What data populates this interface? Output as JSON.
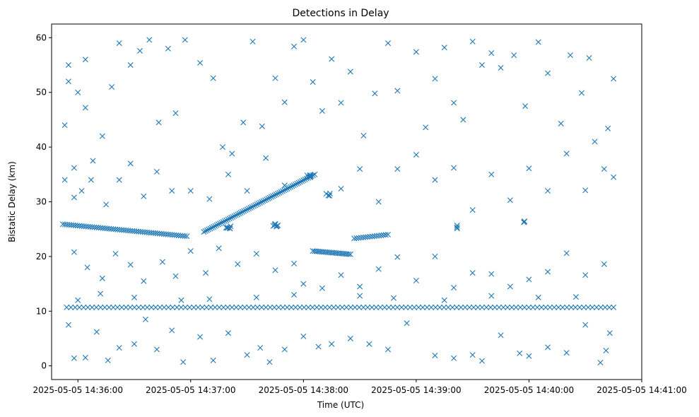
{
  "chart_data": {
    "type": "scatter",
    "title": "Detections in Delay",
    "xlabel": "Time (UTC)",
    "ylabel": "Bistatic Delay (km)",
    "x_ticks": [
      "2025-05-05 14:36:00",
      "2025-05-05 14:37:00",
      "2025-05-05 14:38:00",
      "2025-05-05 14:39:00",
      "2025-05-05 14:40:00",
      "2025-05-05 14:41:00"
    ],
    "y_ticks": [
      0,
      10,
      20,
      30,
      40,
      50,
      60
    ],
    "xlim": [
      "2025-05-05 14:35:46",
      "2025-05-05 14:41:00"
    ],
    "ylim": [
      -2.5,
      62.5
    ],
    "grid": false,
    "legend": "none",
    "marker": "x",
    "color": "#1f77b4",
    "tracks": [
      {
        "description": "descending track",
        "x_start": "2025-05-05 14:35:52",
        "y_start": 25.9,
        "x_end": "2025-05-05 14:36:58",
        "y_end": 23.7,
        "count": 60
      },
      {
        "description": "ascending track",
        "x_start": "2025-05-05 14:37:07",
        "y_start": 24.5,
        "x_end": "2025-05-05 14:38:06",
        "y_end": 35.0,
        "count": 70
      },
      {
        "description": "constant track",
        "x_start": "2025-05-05 14:35:54",
        "y_start": 10.7,
        "x_end": "2025-05-05 14:40:45",
        "y_end": 10.7,
        "count": 130
      },
      {
        "description": "mid track",
        "x_start": "2025-05-05 14:38:05",
        "y_start": 21.0,
        "x_end": "2025-05-05 14:38:25",
        "y_end": 20.4,
        "count": 22
      },
      {
        "description": "short track",
        "x_start": "2025-05-05 14:38:27",
        "y_start": 23.3,
        "x_end": "2025-05-05 14:38:45",
        "y_end": 24.0,
        "count": 16
      }
    ],
    "scattered_points": [
      [
        "2025-05-05 14:35:53",
        44.0
      ],
      [
        "2025-05-05 14:35:55",
        55.0
      ],
      [
        "2025-05-05 14:35:55",
        52.0
      ],
      [
        "2025-05-05 14:35:58",
        36.2
      ],
      [
        "2025-05-05 14:36:00",
        50.0
      ],
      [
        "2025-05-05 14:36:04",
        56.0
      ],
      [
        "2025-05-05 14:36:04",
        47.2
      ],
      [
        "2025-05-05 14:36:08",
        37.5
      ],
      [
        "2025-05-05 14:36:13",
        42.0
      ],
      [
        "2025-05-05 14:36:18",
        51.0
      ],
      [
        "2025-05-05 14:36:22",
        59.0
      ],
      [
        "2025-05-05 14:36:28",
        55.0
      ],
      [
        "2025-05-05 14:36:33",
        57.6
      ],
      [
        "2025-05-05 14:36:38",
        59.6
      ],
      [
        "2025-05-05 14:36:43",
        44.5
      ],
      [
        "2025-05-05 14:36:48",
        58.0
      ],
      [
        "2025-05-05 14:36:52",
        46.2
      ],
      [
        "2025-05-05 14:36:57",
        59.6
      ],
      [
        "2025-05-05 14:37:05",
        55.4
      ],
      [
        "2025-05-05 14:37:12",
        52.6
      ],
      [
        "2025-05-05 14:37:17",
        40.0
      ],
      [
        "2025-05-05 14:37:22",
        38.8
      ],
      [
        "2025-05-05 14:37:28",
        44.5
      ],
      [
        "2025-05-05 14:37:33",
        59.3
      ],
      [
        "2025-05-05 14:37:38",
        43.8
      ],
      [
        "2025-05-05 14:37:45",
        52.6
      ],
      [
        "2025-05-05 14:37:50",
        48.2
      ],
      [
        "2025-05-05 14:37:55",
        58.4
      ],
      [
        "2025-05-05 14:38:00",
        59.6
      ],
      [
        "2025-05-05 14:38:05",
        51.9
      ],
      [
        "2025-05-05 14:38:10",
        46.6
      ],
      [
        "2025-05-05 14:38:15",
        56.1
      ],
      [
        "2025-05-05 14:38:20",
        48.1
      ],
      [
        "2025-05-05 14:38:25",
        53.8
      ],
      [
        "2025-05-05 14:38:32",
        42.1
      ],
      [
        "2025-05-05 14:38:38",
        49.8
      ],
      [
        "2025-05-05 14:38:45",
        59.0
      ],
      [
        "2025-05-05 14:38:50",
        50.3
      ],
      [
        "2025-05-05 14:39:00",
        57.4
      ],
      [
        "2025-05-05 14:39:05",
        43.6
      ],
      [
        "2025-05-05 14:39:10",
        52.5
      ],
      [
        "2025-05-05 14:39:15",
        58.2
      ],
      [
        "2025-05-05 14:39:20",
        48.1
      ],
      [
        "2025-05-05 14:39:25",
        45.0
      ],
      [
        "2025-05-05 14:39:30",
        59.3
      ],
      [
        "2025-05-05 14:39:35",
        55.0
      ],
      [
        "2025-05-05 14:39:40",
        57.2
      ],
      [
        "2025-05-05 14:39:45",
        54.5
      ],
      [
        "2025-05-05 14:39:52",
        56.8
      ],
      [
        "2025-05-05 14:39:58",
        47.5
      ],
      [
        "2025-05-05 14:40:05",
        59.2
      ],
      [
        "2025-05-05 14:40:10",
        53.5
      ],
      [
        "2025-05-05 14:40:17",
        44.3
      ],
      [
        "2025-05-05 14:40:22",
        56.8
      ],
      [
        "2025-05-05 14:40:28",
        49.9
      ],
      [
        "2025-05-05 14:40:32",
        56.3
      ],
      [
        "2025-05-05 14:40:35",
        41.0
      ],
      [
        "2025-05-05 14:40:42",
        43.4
      ],
      [
        "2025-05-05 14:40:45",
        52.5
      ],
      [
        "2025-05-05 14:35:53",
        34.0
      ],
      [
        "2025-05-05 14:35:58",
        30.8
      ],
      [
        "2025-05-05 14:36:02",
        32.0
      ],
      [
        "2025-05-05 14:36:07",
        34.0
      ],
      [
        "2025-05-05 14:36:15",
        29.5
      ],
      [
        "2025-05-05 14:36:22",
        34.0
      ],
      [
        "2025-05-05 14:36:28",
        37.0
      ],
      [
        "2025-05-05 14:36:35",
        31.0
      ],
      [
        "2025-05-05 14:36:42",
        35.5
      ],
      [
        "2025-05-05 14:36:50",
        32.0
      ],
      [
        "2025-05-05 14:37:00",
        32.0
      ],
      [
        "2025-05-05 14:37:10",
        30.5
      ],
      [
        "2025-05-05 14:37:20",
        35.0
      ],
      [
        "2025-05-05 14:37:30",
        32.0
      ],
      [
        "2025-05-05 14:37:40",
        38.0
      ],
      [
        "2025-05-05 14:37:50",
        33.0
      ],
      [
        "2025-05-05 14:38:20",
        32.4
      ],
      [
        "2025-05-05 14:38:30",
        36.0
      ],
      [
        "2025-05-05 14:38:40",
        30.0
      ],
      [
        "2025-05-05 14:38:50",
        36.0
      ],
      [
        "2025-05-05 14:39:00",
        38.6
      ],
      [
        "2025-05-05 14:39:10",
        34.0
      ],
      [
        "2025-05-05 14:39:20",
        36.2
      ],
      [
        "2025-05-05 14:39:30",
        28.5
      ],
      [
        "2025-05-05 14:39:40",
        35.0
      ],
      [
        "2025-05-05 14:39:50",
        30.3
      ],
      [
        "2025-05-05 14:40:00",
        36.1
      ],
      [
        "2025-05-05 14:40:10",
        32.0
      ],
      [
        "2025-05-05 14:40:20",
        38.8
      ],
      [
        "2025-05-05 14:40:30",
        32.1
      ],
      [
        "2025-05-05 14:40:40",
        36.0
      ],
      [
        "2025-05-05 14:40:45",
        34.5
      ],
      [
        "2025-05-05 14:35:58",
        20.8
      ],
      [
        "2025-05-05 14:36:05",
        18.0
      ],
      [
        "2025-05-05 14:36:13",
        16.0
      ],
      [
        "2025-05-05 14:36:20",
        20.5
      ],
      [
        "2025-05-05 14:36:28",
        18.5
      ],
      [
        "2025-05-05 14:36:35",
        15.5
      ],
      [
        "2025-05-05 14:36:45",
        19.0
      ],
      [
        "2025-05-05 14:36:52",
        16.4
      ],
      [
        "2025-05-05 14:37:00",
        21.0
      ],
      [
        "2025-05-05 14:37:08",
        17.0
      ],
      [
        "2025-05-05 14:37:15",
        21.5
      ],
      [
        "2025-05-05 14:37:25",
        18.6
      ],
      [
        "2025-05-05 14:37:35",
        20.5
      ],
      [
        "2025-05-05 14:37:45",
        17.5
      ],
      [
        "2025-05-05 14:37:55",
        18.7
      ],
      [
        "2025-05-05 14:38:00",
        15.0
      ],
      [
        "2025-05-05 14:38:10",
        14.2
      ],
      [
        "2025-05-05 14:38:20",
        16.6
      ],
      [
        "2025-05-05 14:38:30",
        14.5
      ],
      [
        "2025-05-05 14:38:40",
        17.7
      ],
      [
        "2025-05-05 14:38:50",
        19.9
      ],
      [
        "2025-05-05 14:39:00",
        15.6
      ],
      [
        "2025-05-05 14:39:10",
        20.0
      ],
      [
        "2025-05-05 14:39:20",
        14.3
      ],
      [
        "2025-05-05 14:39:30",
        17.0
      ],
      [
        "2025-05-05 14:39:40",
        16.8
      ],
      [
        "2025-05-05 14:39:50",
        14.5
      ],
      [
        "2025-05-05 14:40:00",
        15.8
      ],
      [
        "2025-05-05 14:40:10",
        17.2
      ],
      [
        "2025-05-05 14:40:20",
        20.6
      ],
      [
        "2025-05-05 14:40:30",
        16.6
      ],
      [
        "2025-05-05 14:40:40",
        18.6
      ],
      [
        "2025-05-05 14:35:55",
        7.5
      ],
      [
        "2025-05-05 14:35:58",
        1.4
      ],
      [
        "2025-05-05 14:36:04",
        1.5
      ],
      [
        "2025-05-05 14:36:10",
        6.2
      ],
      [
        "2025-05-05 14:36:16",
        1.0
      ],
      [
        "2025-05-05 14:36:22",
        3.3
      ],
      [
        "2025-05-05 14:36:30",
        4.0
      ],
      [
        "2025-05-05 14:36:36",
        8.5
      ],
      [
        "2025-05-05 14:36:42",
        3.0
      ],
      [
        "2025-05-05 14:36:50",
        6.5
      ],
      [
        "2025-05-05 14:36:56",
        0.7
      ],
      [
        "2025-05-05 14:37:05",
        5.3
      ],
      [
        "2025-05-05 14:37:12",
        1.0
      ],
      [
        "2025-05-05 14:37:20",
        6.0
      ],
      [
        "2025-05-05 14:37:30",
        2.0
      ],
      [
        "2025-05-05 14:37:37",
        3.3
      ],
      [
        "2025-05-05 14:37:42",
        0.7
      ],
      [
        "2025-05-05 14:37:50",
        3.0
      ],
      [
        "2025-05-05 14:38:00",
        5.4
      ],
      [
        "2025-05-05 14:38:08",
        3.5
      ],
      [
        "2025-05-05 14:38:15",
        4.0
      ],
      [
        "2025-05-05 14:38:25",
        5.0
      ],
      [
        "2025-05-05 14:38:35",
        4.0
      ],
      [
        "2025-05-05 14:38:45",
        3.0
      ],
      [
        "2025-05-05 14:38:55",
        7.8
      ],
      [
        "2025-05-05 14:39:10",
        1.9
      ],
      [
        "2025-05-05 14:39:20",
        1.4
      ],
      [
        "2025-05-05 14:39:30",
        2.0
      ],
      [
        "2025-05-05 14:39:35",
        0.9
      ],
      [
        "2025-05-05 14:39:45",
        5.6
      ],
      [
        "2025-05-05 14:39:55",
        2.3
      ],
      [
        "2025-05-05 14:40:00",
        1.8
      ],
      [
        "2025-05-05 14:40:10",
        3.4
      ],
      [
        "2025-05-05 14:40:20",
        2.4
      ],
      [
        "2025-05-05 14:40:30",
        7.5
      ],
      [
        "2025-05-05 14:40:38",
        0.6
      ],
      [
        "2025-05-05 14:40:41",
        2.8
      ],
      [
        "2025-05-05 14:40:43",
        6.0
      ],
      [
        "2025-05-05 14:36:00",
        12.0
      ],
      [
        "2025-05-05 14:36:12",
        13.2
      ],
      [
        "2025-05-05 14:36:30",
        12.5
      ],
      [
        "2025-05-05 14:36:55",
        12.0
      ],
      [
        "2025-05-05 14:37:10",
        12.2
      ],
      [
        "2025-05-05 14:37:35",
        12.5
      ],
      [
        "2025-05-05 14:37:55",
        13.0
      ],
      [
        "2025-05-05 14:38:30",
        12.8
      ],
      [
        "2025-05-05 14:38:48",
        12.4
      ],
      [
        "2025-05-05 14:39:15",
        12.0
      ],
      [
        "2025-05-05 14:39:40",
        12.8
      ],
      [
        "2025-05-05 14:40:05",
        12.5
      ],
      [
        "2025-05-05 14:40:25",
        12.6
      ]
    ],
    "clusters": [
      {
        "x": "2025-05-05 14:38:03",
        "y": 34.6,
        "count": 6
      },
      {
        "x": "2025-05-05 14:38:13",
        "y": 31.3,
        "count": 4
      },
      {
        "x": "2025-05-05 14:37:20",
        "y": 25.3,
        "count": 6
      },
      {
        "x": "2025-05-05 14:37:45",
        "y": 25.7,
        "count": 8
      },
      {
        "x": "2025-05-05 14:39:57",
        "y": 26.5,
        "count": 3
      },
      {
        "x": "2025-05-05 14:39:22",
        "y": 25.4,
        "count": 3
      }
    ]
  }
}
